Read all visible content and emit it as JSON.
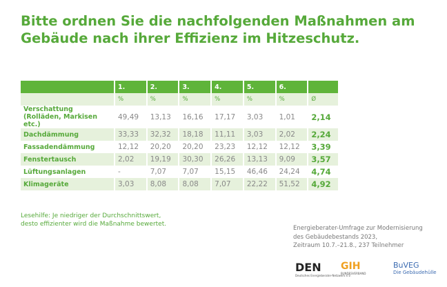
{
  "title": [
    "Bitte ordnen Sie die nachfolgenden Maßnahmen am",
    "Gebäude nach ihrer Effizienz im Hitzeschutz."
  ],
  "table": {
    "header": [
      "1.",
      "2.",
      "3.",
      "4.",
      "5.",
      "6."
    ],
    "units": [
      "%",
      "%",
      "%",
      "%",
      "%",
      "%",
      "Ø"
    ],
    "rows": [
      {
        "label": [
          "Verschattung",
          "(Rolläden, Markisen etc.)"
        ],
        "values": [
          "49,49",
          "13,13",
          "16,16",
          "17,17",
          "3,03",
          "1,01"
        ],
        "average": "2,14"
      },
      {
        "label": [
          "Dachdämmung"
        ],
        "values": [
          "33,33",
          "32,32",
          "18,18",
          "11,11",
          "3,03",
          "2,02"
        ],
        "average": "2,24"
      },
      {
        "label": [
          "Fassadendämmung"
        ],
        "values": [
          "12,12",
          "20,20",
          "20,20",
          "23,23",
          "12,12",
          "12,12"
        ],
        "average": "3,39"
      },
      {
        "label": [
          "Fenstertausch"
        ],
        "values": [
          "2,02",
          "19,19",
          "30,30",
          "26,26",
          "13,13",
          "9,09"
        ],
        "average": "3,57"
      },
      {
        "label": [
          "Lüftungsanlagen"
        ],
        "values": [
          "-",
          "7,07",
          "7,07",
          "15,15",
          "46,46",
          "24,24"
        ],
        "average": "4,74"
      },
      {
        "label": [
          "Klimageräte"
        ],
        "values": [
          "3,03",
          "8,08",
          "8,08",
          "7,07",
          "22,22",
          "51,52"
        ],
        "average": "4,92"
      }
    ]
  },
  "reading_aid": [
    "Lesehilfe: Je niedriger der Durchschnittswert,",
    "desto effizienter wird die Maßnahme bewertet."
  ],
  "source": [
    "Energieberater-Umfrage zur Modernisierung",
    "des Gebäudebestands 2023,",
    "Zeitraum 10.7.–21.8., 237 Teilnehmer"
  ],
  "logos": {
    "den": "DEN",
    "den_sub": "Deutsches Energieberater-Netzwerk e.V.",
    "gih": "GIH",
    "gih_sub": "BUNDESVERBAND",
    "buveg": "BuVEG",
    "buveg_sub": "Die Gebäudehülle"
  }
}
